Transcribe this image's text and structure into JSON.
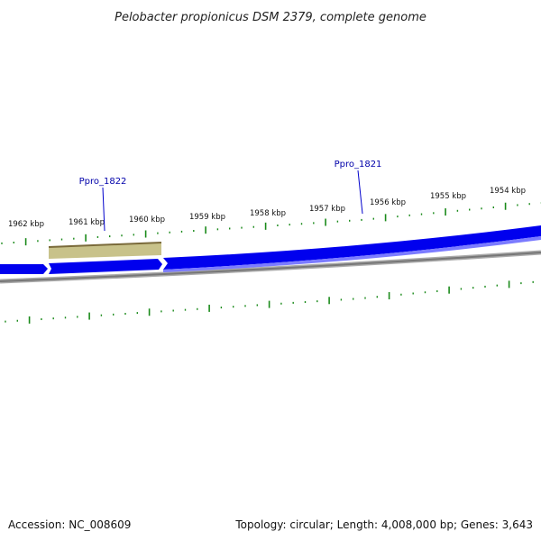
{
  "title": "Pelobacter propionicus DSM 2379, complete genome",
  "footer": {
    "accession": "Accession: NC_008609",
    "summary": "Topology: circular; Length: 4,008,000 bp; Genes: 3,643"
  },
  "axis": {
    "unit": "kbp",
    "labels": [
      "1962 kbp",
      "1961 kbp",
      "1960 kbp",
      "1959 kbp",
      "1958 kbp",
      "1957 kbp",
      "1956 kbp",
      "1955 kbp",
      "1954 kbp"
    ]
  },
  "genes": [
    {
      "name": "Ppro_1822",
      "color": "#0000aa"
    },
    {
      "name": "Ppro_1821",
      "color": "#0000aa"
    }
  ],
  "colors": {
    "gene_track": "#0000ee",
    "gene_track_light": "#7b7bff",
    "highlight_gene": "#c8c28a",
    "highlight_gene_edge": "#7a6a3a",
    "backbone": "#777777",
    "ticks": "#1a8a1a",
    "labels": "#000000"
  }
}
